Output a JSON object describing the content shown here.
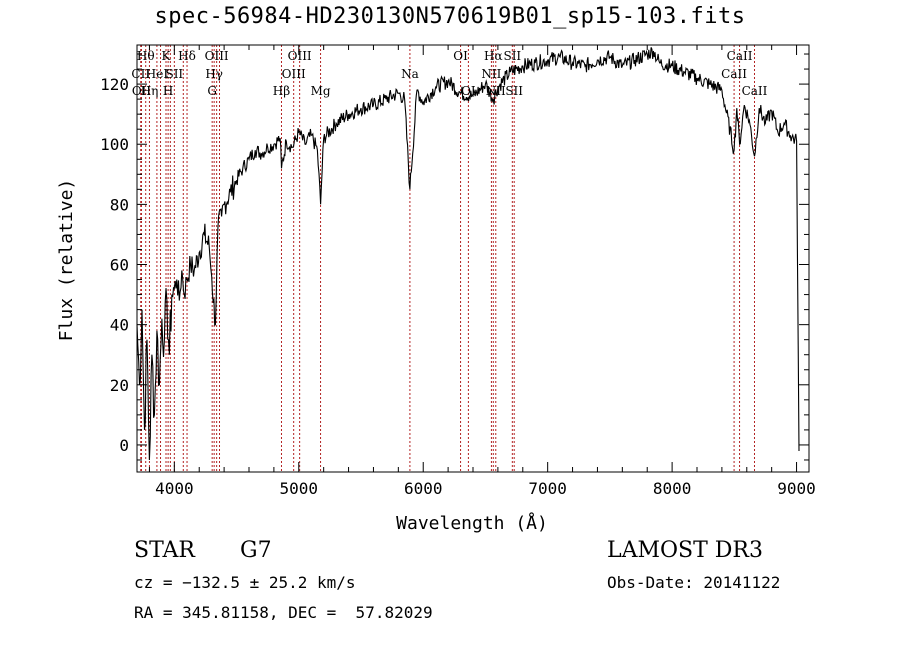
{
  "header": {
    "title": "spec-56984-HD230130N570619B01_sp15-103.fits"
  },
  "info": {
    "class": "STAR",
    "subclass": "G7",
    "survey": "LAMOST DR3",
    "cz": "cz = −132.5 ± 25.2 km/s",
    "obs_date": "Obs-Date: 20141122",
    "radec": "RA = 345.81158, DEC =  57.82029"
  },
  "chart_data": {
    "type": "line",
    "title": "spec-56984-HD230130N570619B01_sp15-103.fits",
    "xlabel": "Wavelength (Å)",
    "ylabel": "Flux (relative)",
    "xlim": [
      3700,
      9100
    ],
    "ylim": [
      -9,
      133
    ],
    "xticks": [
      4000,
      5000,
      6000,
      7000,
      8000,
      9000
    ],
    "yticks": [
      0,
      20,
      40,
      60,
      80,
      100,
      120
    ],
    "grid": false,
    "legend": "none",
    "line_color": "#000000",
    "marker_color": "#b22222",
    "series": [
      {
        "x": [
          3700,
          3720,
          3740,
          3760,
          3780,
          3800,
          3820,
          3840,
          3860,
          3880,
          3900,
          3920,
          3940,
          3960,
          3980,
          4000,
          4020,
          4040,
          4060,
          4080,
          4100,
          4130,
          4160,
          4200,
          4240,
          4280,
          4300,
          4330,
          4350,
          4380,
          4400,
          4450,
          4500,
          4550,
          4600,
          4650,
          4700,
          4750,
          4800,
          4850,
          4861,
          4900,
          4950,
          5000,
          5050,
          5100,
          5150,
          5175,
          5200,
          5300,
          5400,
          5500,
          5600,
          5700,
          5800,
          5850,
          5893,
          5950,
          6000,
          6100,
          6200,
          6300,
          6400,
          6500,
          6563,
          6600,
          6700,
          6800,
          6900,
          7000,
          7100,
          7200,
          7300,
          7400,
          7500,
          7600,
          7700,
          7800,
          7850,
          7900,
          8000,
          8100,
          8200,
          8300,
          8400,
          8498,
          8520,
          8542,
          8580,
          8620,
          8662,
          8700,
          8750,
          8800,
          8850,
          8900,
          8950,
          9000,
          9020
        ],
        "y": [
          40,
          20,
          45,
          5,
          35,
          -5,
          30,
          10,
          38,
          20,
          42,
          35,
          48,
          30,
          50,
          52,
          55,
          48,
          58,
          50,
          55,
          60,
          58,
          64,
          70,
          66,
          56,
          40,
          72,
          76,
          80,
          84,
          88,
          92,
          95,
          98,
          97,
          99,
          100,
          102,
          92,
          101,
          99,
          104,
          100,
          103,
          98,
          80,
          102,
          107,
          110,
          112,
          113,
          115,
          117,
          115,
          85,
          118,
          114,
          119,
          121,
          117,
          116,
          120,
          115,
          119,
          124,
          126,
          127,
          128,
          129,
          127,
          126,
          128,
          129,
          126,
          128,
          130,
          131,
          127,
          126,
          124,
          122,
          120,
          118,
          98,
          112,
          100,
          113,
          108,
          96,
          112,
          107,
          111,
          104,
          107,
          103,
          101,
          -2
        ]
      }
    ],
    "line_markers": [
      {
        "x": 3730,
        "label": "CII",
        "row": 1
      },
      {
        "x": 3736,
        "label": "OII",
        "row": 2
      },
      {
        "x": 3770,
        "label": "Hθ",
        "row": 0
      },
      {
        "x": 3800,
        "label": "Hη",
        "row": 2
      },
      {
        "x": 3860,
        "label": "HeI",
        "row": 1
      },
      {
        "x": 3889,
        "label": "",
        "row": -1
      },
      {
        "x": 3933,
        "label": "K",
        "row": 0
      },
      {
        "x": 3950,
        "label": "H",
        "row": 2
      },
      {
        "x": 3968,
        "label": "",
        "row": -1
      },
      {
        "x": 4000,
        "label": "SII",
        "row": 1
      },
      {
        "x": 4072,
        "label": "",
        "row": -1
      },
      {
        "x": 4102,
        "label": "Hδ",
        "row": 0
      },
      {
        "x": 4304,
        "label": "G",
        "row": 2
      },
      {
        "x": 4320,
        "label": "Hγ",
        "row": 1
      },
      {
        "x": 4340,
        "label": "OIII",
        "row": 0
      },
      {
        "x": 4363,
        "label": "",
        "row": -1
      },
      {
        "x": 4861,
        "label": "Hβ",
        "row": 2
      },
      {
        "x": 4959,
        "label": "OIII",
        "row": 1
      },
      {
        "x": 5007,
        "label": "OIII",
        "row": 0
      },
      {
        "x": 5175,
        "label": "Mg",
        "row": 2
      },
      {
        "x": 5893,
        "label": "Na",
        "row": 1
      },
      {
        "x": 6300,
        "label": "OI",
        "row": 0
      },
      {
        "x": 6363,
        "label": "OI",
        "row": 2
      },
      {
        "x": 6548,
        "label": "NII",
        "row": 1
      },
      {
        "x": 6563,
        "label": "Hα",
        "row": 0
      },
      {
        "x": 6583,
        "label": "NII",
        "row": 2
      },
      {
        "x": 6716,
        "label": "SII",
        "row": 0
      },
      {
        "x": 6731,
        "label": "SII",
        "row": 2
      },
      {
        "x": 8498,
        "label": "CaII",
        "row": 1
      },
      {
        "x": 8542,
        "label": "CaII",
        "row": 0
      },
      {
        "x": 8662,
        "label": "CaII",
        "row": 2
      }
    ]
  }
}
